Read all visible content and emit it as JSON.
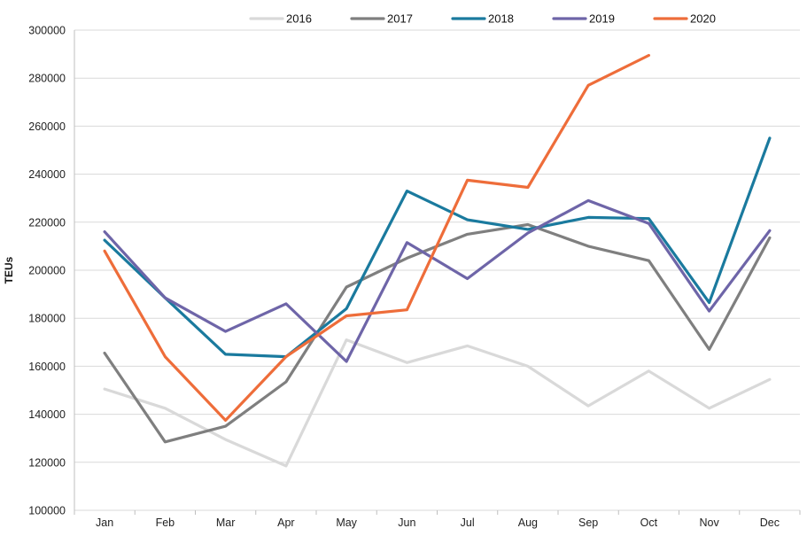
{
  "chart_data": {
    "type": "line",
    "title": "",
    "xlabel": "",
    "ylabel": "TEUs",
    "ylim": [
      100000,
      300000
    ],
    "ytick_step": 20000,
    "grid": true,
    "legend_position": "top-center",
    "categories": [
      "Jan",
      "Feb",
      "Mar",
      "Apr",
      "May",
      "Jun",
      "Jul",
      "Aug",
      "Sep",
      "Oct",
      "Nov",
      "Dec"
    ],
    "series": [
      {
        "name": "2016",
        "color": "#d9d9d9",
        "values": [
          150500,
          142500,
          129500,
          118500,
          171000,
          161500,
          168500,
          160000,
          143500,
          158000,
          142500,
          154500
        ]
      },
      {
        "name": "2017",
        "color": "#7f7f7f",
        "values": [
          165500,
          128500,
          135000,
          153500,
          193000,
          205000,
          215000,
          219000,
          210000,
          204000,
          167000,
          213500
        ]
      },
      {
        "name": "2018",
        "color": "#1a7a9e",
        "values": [
          212500,
          188500,
          165000,
          164000,
          184000,
          233000,
          221000,
          217000,
          222000,
          221500,
          186500,
          255000
        ]
      },
      {
        "name": "2019",
        "color": "#6e65a8",
        "values": [
          216000,
          188500,
          174500,
          186000,
          162000,
          211500,
          196500,
          215500,
          229000,
          219500,
          183000,
          216500
        ]
      },
      {
        "name": "2020",
        "color": "#ee6d3a",
        "values": [
          208000,
          164000,
          137500,
          164000,
          181000,
          183500,
          237500,
          234500,
          277000,
          289500,
          null,
          null
        ]
      }
    ]
  }
}
